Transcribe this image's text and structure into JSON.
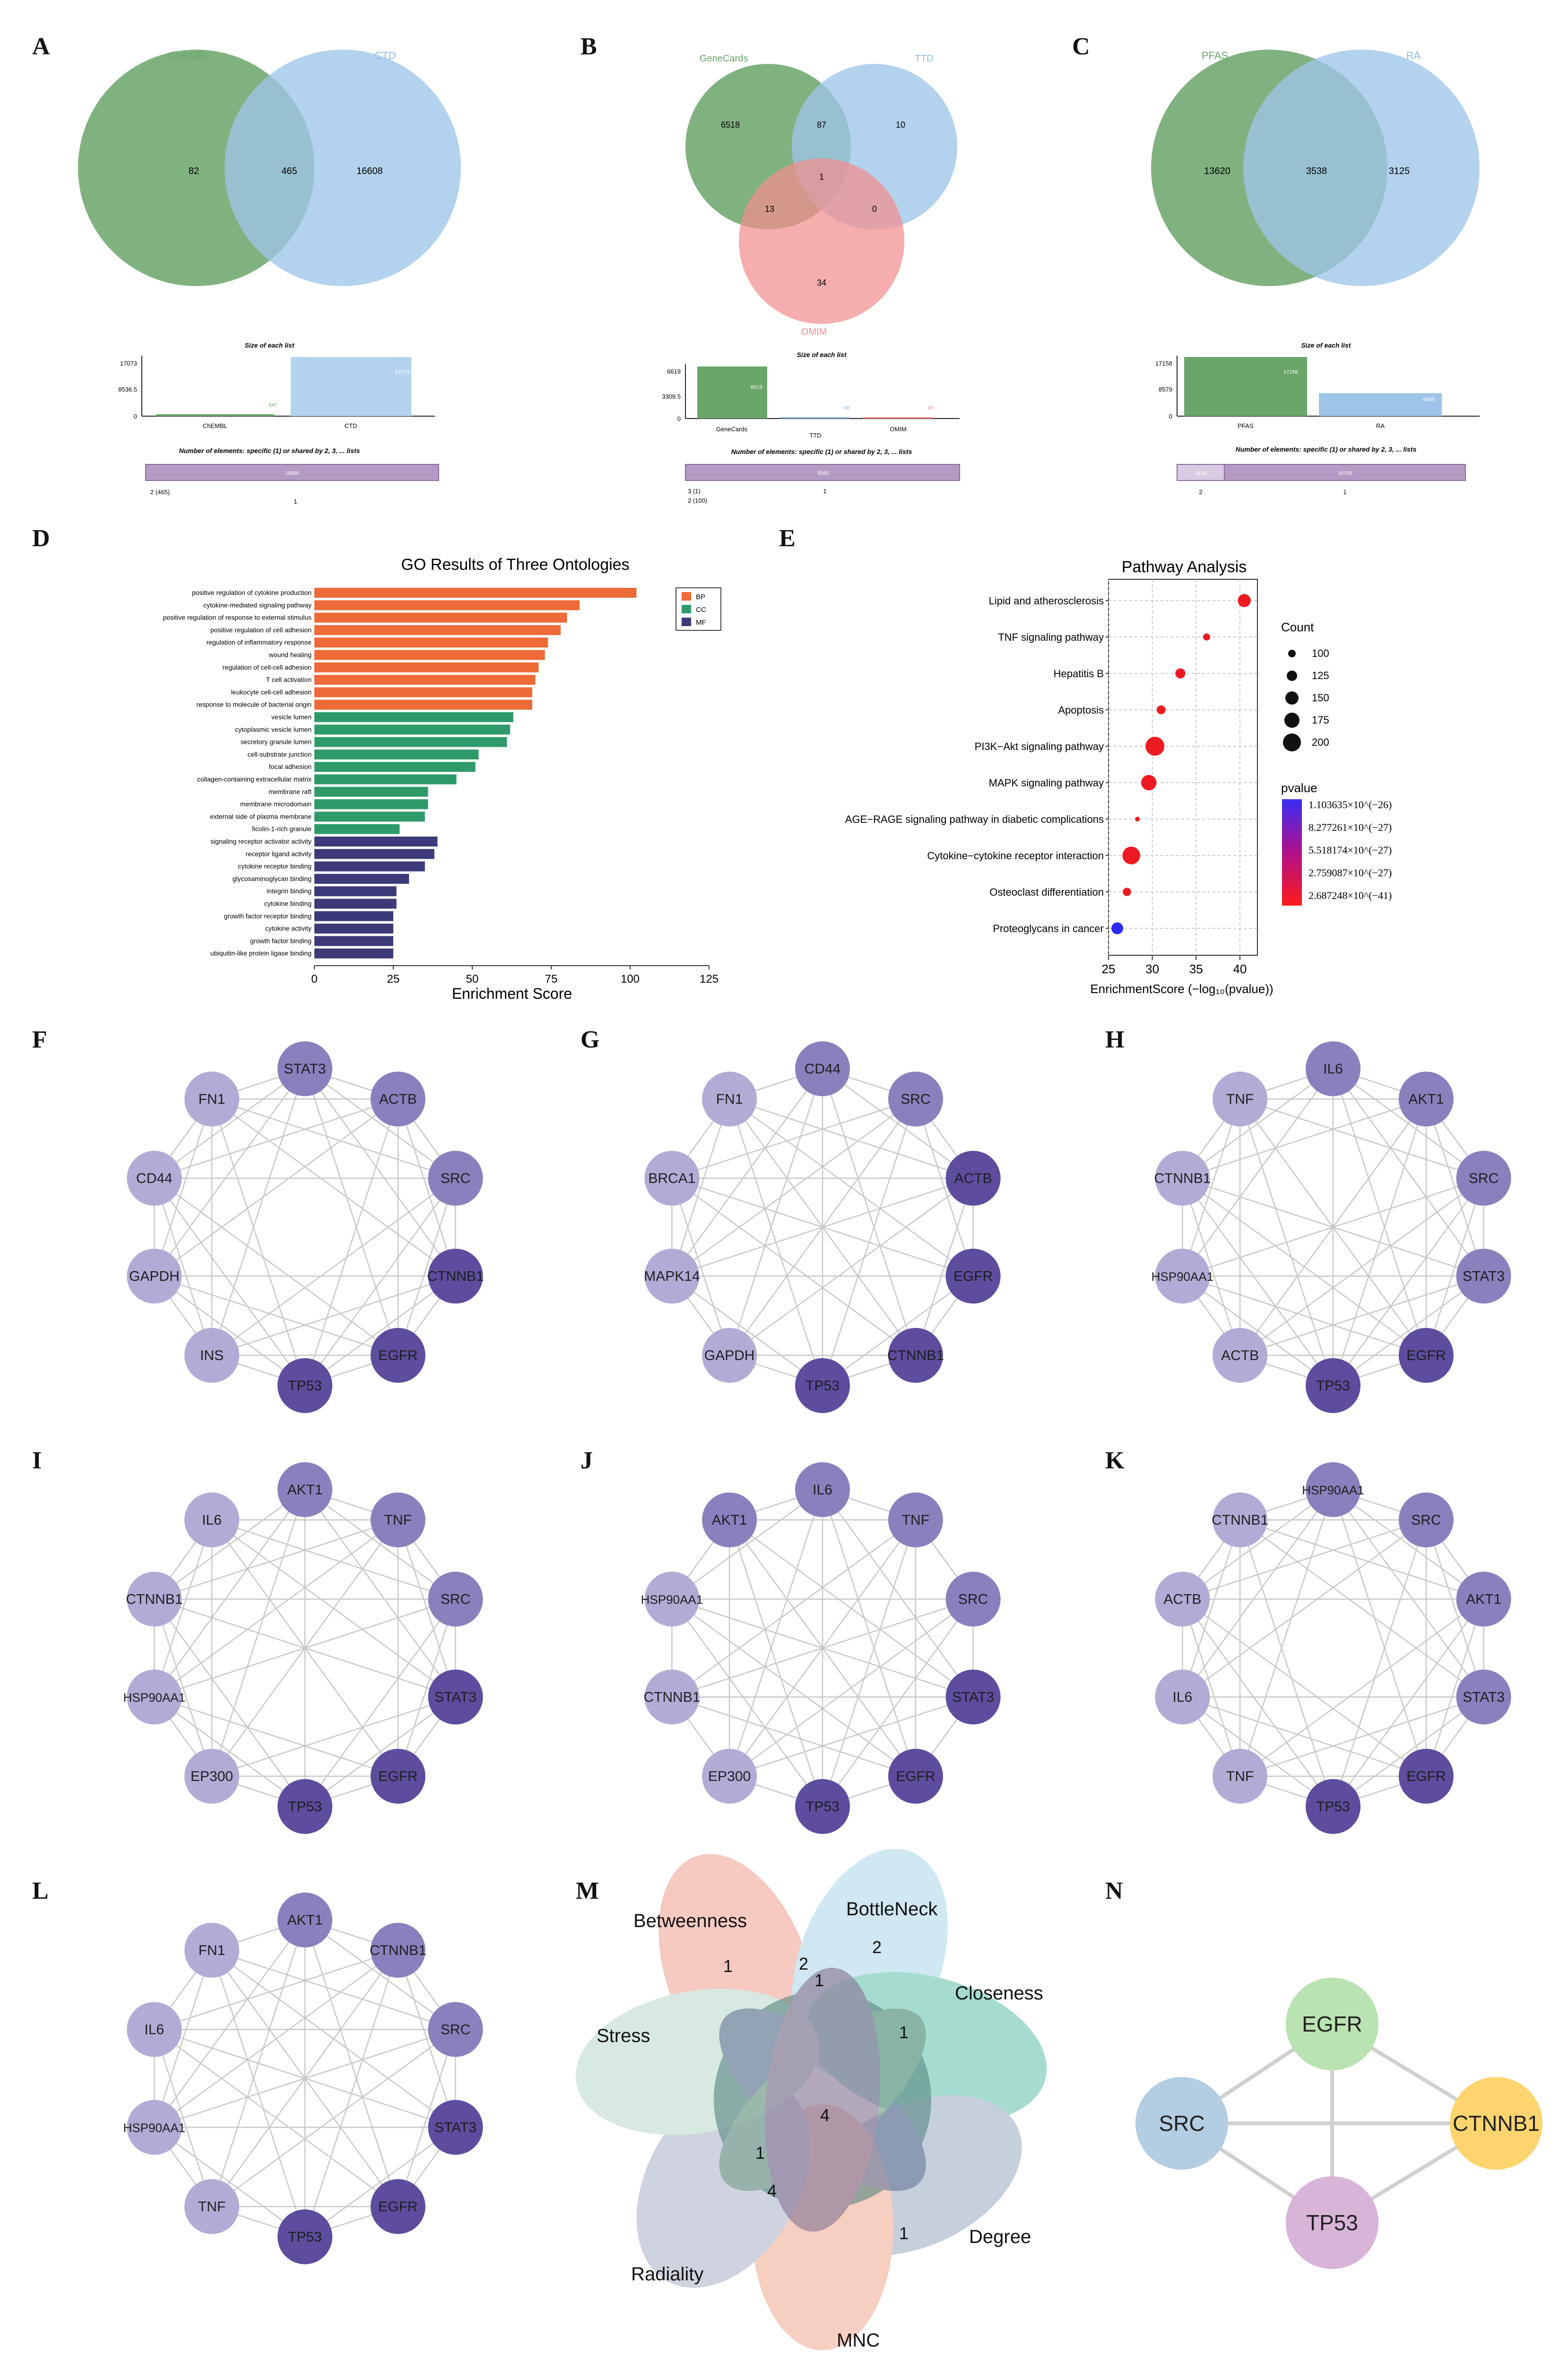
{
  "panel_letters": [
    "A",
    "B",
    "C",
    "D",
    "E",
    "F",
    "G",
    "H",
    "I",
    "J",
    "K",
    "L",
    "M",
    "N"
  ],
  "colors": {
    "green": "#6aa56a",
    "blue": "#9ec5e8",
    "pink": "#f28e8e",
    "bp": "#ee6a36",
    "cc": "#2e9a6a",
    "mf": "#3d3a7a",
    "node_dark": "#5e4c9e",
    "node_mid": "#8c7fbe",
    "node_light": "#b3abd6",
    "edge": "#c8c8c8"
  },
  "venn": [
    {
      "sets": [
        "ChEMBL",
        "CTD"
      ],
      "counts": [
        "82",
        "465",
        "16608"
      ],
      "bar_title": "Size of each list",
      "bar_axis": [
        "17073",
        "8536.5",
        "0"
      ],
      "bars": [
        {
          "label": "ChEMBL",
          "value": 547,
          "text": "547"
        },
        {
          "label": "CTD",
          "value": 17073,
          "text": "17073"
        }
      ],
      "bar_max": 17073,
      "strip_title": "Number of elements: specific (1) or shared by 2, 3, ... lists",
      "strip_text": "16690",
      "strip_left": [
        "2 (465)"
      ],
      "strip_tick": "1"
    },
    {
      "sets": [
        "GeneCards",
        "TTD",
        "OMIM"
      ],
      "counts": [
        "6518",
        "87",
        "10",
        "1",
        "13",
        "0",
        "34"
      ],
      "bar_title": "Size of each list",
      "bar_axis": [
        "6619",
        "3309.5",
        "0"
      ],
      "bars": [
        {
          "label": "GeneCards",
          "value": 6619,
          "text": "6619"
        },
        {
          "label": "TTD",
          "value": 98,
          "text": "98"
        },
        {
          "label": "OMIM",
          "value": 48,
          "text": "48"
        }
      ],
      "bar_max": 6619,
      "strip_title": "Number of elements: specific (1) or shared by 2, 3, ... lists",
      "strip_text": "6562",
      "strip_left": [
        "3 (1)",
        "2 (100)"
      ],
      "strip_tick": "1"
    },
    {
      "sets": [
        "PFAS",
        "RA"
      ],
      "counts": [
        "13620",
        "3538",
        "3125"
      ],
      "bar_title": "Size of each list",
      "bar_axis": [
        "17158",
        "8579",
        "0"
      ],
      "bars": [
        {
          "label": "PFAS",
          "value": 17158,
          "text": "17158"
        },
        {
          "label": "RA",
          "value": 6663,
          "text": "6663"
        }
      ],
      "bar_max": 17158,
      "strip_title": "Number of elements: specific (1) or shared by 2, 3, ... lists",
      "strip_text": "16745",
      "strip_left": [
        "3538"
      ],
      "strip_tick_a": "2",
      "strip_tick": "1"
    }
  ],
  "chart_data": [
    {
      "type": "bar",
      "orientation": "horizontal",
      "title": "GO Results of Three Ontologies",
      "xlabel": "Enrichment Score",
      "xlim": [
        0,
        125
      ],
      "xticks": [
        "0",
        "25",
        "50",
        "75",
        "100",
        "125"
      ],
      "legend": [
        {
          "key": "BP",
          "color": "#ee6a36"
        },
        {
          "key": "CC",
          "color": "#2e9a6a"
        },
        {
          "key": "MF",
          "color": "#3d3a7a"
        }
      ],
      "categories": [
        "positive regulation of cytokine production",
        "cytokine-mediated signaling pathway",
        "positive regulation of response to external stimulus",
        "positive regulation of cell adhesion",
        "regulation of inflammatory response",
        "wound healing",
        "regulation of cell-cell adhesion",
        "T cell activation",
        "leukocyte cell-cell adhesion",
        "response to molecule of bacterial origin",
        "vesicle lumen",
        "cytoplasmic vesicle lumen",
        "secretory granule lumen",
        "cell-substrate junction",
        "focal adhesion",
        "collagen-containing extracellular matrix",
        "membrane raft",
        "membrane microdomain",
        "external side of plasma membrane",
        "ficolin-1-rich granule",
        "signaling receptor activator activity",
        "receptor ligand activity",
        "cytokine receptor binding",
        "glycosaminoglycan binding",
        "integrin binding",
        "cytokine binding",
        "growth factor receptor binding",
        "cytokine activity",
        "growth factor binding",
        "ubiquitin-like protein ligase binding"
      ],
      "groups": [
        "BP",
        "BP",
        "BP",
        "BP",
        "BP",
        "BP",
        "BP",
        "BP",
        "BP",
        "BP",
        "CC",
        "CC",
        "CC",
        "CC",
        "CC",
        "CC",
        "CC",
        "CC",
        "CC",
        "CC",
        "MF",
        "MF",
        "MF",
        "MF",
        "MF",
        "MF",
        "MF",
        "MF",
        "MF",
        "MF"
      ],
      "values": [
        102,
        84,
        80,
        78,
        74,
        73,
        71,
        70,
        69,
        69,
        63,
        62,
        61,
        52,
        51,
        45,
        36,
        36,
        35,
        27,
        39,
        38,
        35,
        30,
        26,
        26,
        25,
        25,
        25,
        25
      ]
    },
    {
      "type": "scatter",
      "title": "Pathway Analysis",
      "xlabel": "EnrichmentScore (−log₁₀(pvalue))",
      "xlim": [
        25,
        42
      ],
      "xticks": [
        "25",
        "30",
        "35",
        "40"
      ],
      "categories": [
        "Lipid and atherosclerosis",
        "TNF signaling pathway",
        "Hepatitis B",
        "Apoptosis",
        "PI3K−Akt signaling pathway",
        "MAPK signaling pathway",
        "AGE−RAGE signaling pathway in diabetic complications",
        "Cytokine−cytokine receptor interaction",
        "Osteoclast differentiation",
        "Proteoglycans in cancer"
      ],
      "x": [
        40.5,
        36.2,
        33.2,
        31.0,
        30.3,
        29.6,
        28.3,
        27.6,
        27.1,
        26.0
      ],
      "count": [
        150,
        100,
        125,
        115,
        200,
        170,
        80,
        190,
        110,
        140
      ],
      "color_index": [
        1.0,
        0.75,
        0.7,
        0.68,
        0.65,
        0.6,
        0.5,
        0.45,
        0.4,
        0.0
      ],
      "count_title": "Count",
      "count_legend": [
        "100",
        "125",
        "150",
        "175",
        "200"
      ],
      "pvalue_title": "pvalue",
      "pvalue_legend": [
        "1.103635×10^(−26)",
        "8.277261×10^(−27)",
        "5.518174×10^(−27)",
        "2.759087×10^(−27)",
        "2.687248×10^(−41)"
      ]
    }
  ],
  "networks": [
    {
      "label": "F",
      "nodes": [
        "STAT3",
        "ACTB",
        "SRC",
        "CTNNB1",
        "EGFR",
        "TP53",
        "INS",
        "GAPDH",
        "CD44",
        "FN1"
      ],
      "shade": [
        1,
        1,
        1,
        2,
        2,
        2,
        0,
        0,
        0,
        0
      ]
    },
    {
      "label": "G",
      "nodes": [
        "CD44",
        "SRC",
        "ACTB",
        "EGFR",
        "CTNNB1",
        "TP53",
        "GAPDH",
        "MAPK14",
        "BRCA1",
        "FN1"
      ],
      "shade": [
        1,
        1,
        2,
        2,
        2,
        2,
        0,
        0,
        0,
        0
      ]
    },
    {
      "label": "H",
      "nodes": [
        "IL6",
        "AKT1",
        "SRC",
        "STAT3",
        "EGFR",
        "TP53",
        "ACTB",
        "HSP90AA1",
        "CTNNB1",
        "TNF"
      ],
      "shade": [
        1,
        1,
        1,
        1,
        2,
        2,
        0,
        0,
        0,
        0
      ]
    },
    {
      "label": "I",
      "nodes": [
        "AKT1",
        "TNF",
        "SRC",
        "STAT3",
        "EGFR",
        "TP53",
        "EP300",
        "HSP90AA1",
        "CTNNB1",
        "IL6"
      ],
      "shade": [
        1,
        1,
        1,
        2,
        2,
        2,
        0,
        0,
        0,
        0
      ]
    },
    {
      "label": "J",
      "nodes": [
        "IL6",
        "TNF",
        "SRC",
        "STAT3",
        "EGFR",
        "TP53",
        "EP300",
        "CTNNB1",
        "HSP90AA1",
        "AKT1"
      ],
      "shade": [
        1,
        1,
        1,
        2,
        2,
        2,
        0,
        0,
        0,
        1
      ]
    },
    {
      "label": "K",
      "nodes": [
        "HSP90AA1",
        "SRC",
        "AKT1",
        "STAT3",
        "EGFR",
        "TP53",
        "TNF",
        "IL6",
        "ACTB",
        "CTNNB1"
      ],
      "shade": [
        1,
        1,
        1,
        1,
        2,
        2,
        0,
        0,
        0,
        0
      ]
    },
    {
      "label": "L",
      "nodes": [
        "AKT1",
        "CTNNB1",
        "SRC",
        "STAT3",
        "EGFR",
        "TP53",
        "TNF",
        "HSP90AA1",
        "IL6",
        "FN1"
      ],
      "shade": [
        1,
        1,
        1,
        2,
        2,
        2,
        0,
        0,
        0,
        0
      ]
    }
  ],
  "flower": {
    "labels": [
      "Betweenness",
      "BottleNeck",
      "Closeness",
      "Degree",
      "MNC",
      "Radiality",
      "Stress"
    ],
    "numbers": [
      "1",
      "2",
      "2",
      "1",
      "1",
      "4",
      "1",
      "4",
      "1"
    ]
  },
  "hub": {
    "nodes": [
      {
        "name": "EGFR",
        "color": "#b9e3b0"
      },
      {
        "name": "SRC",
        "color": "#b3cde3"
      },
      {
        "name": "CTNNB1",
        "color": "#fed46e"
      },
      {
        "name": "TP53",
        "color": "#d8b4d8"
      }
    ]
  }
}
